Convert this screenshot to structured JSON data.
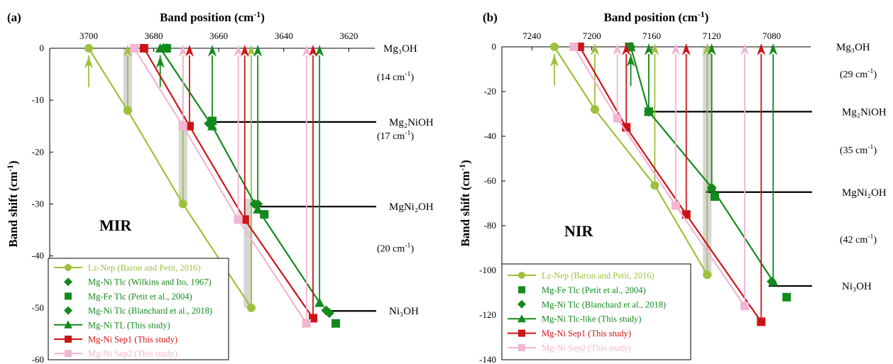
{
  "figure": {
    "colors": {
      "lz_nep": "#9dc13c",
      "green": "#138a1d",
      "red": "#cc1417",
      "pink": "#f2b5d2",
      "gray": "#cfcfcf",
      "black": "#000000"
    }
  },
  "chart_data": [
    {
      "type": "line",
      "panel_label": "(a)",
      "title_text": "Band position (cm",
      "title_sup": "-1",
      "title_end": ")",
      "ylabel_text": "Band shift (cm",
      "ylabel_sup": "-1",
      "ylabel_end": ")",
      "x_reversed": true,
      "xlim": [
        3712,
        3612
      ],
      "ylim": [
        -60,
        0
      ],
      "x_ticks": [
        3700,
        3680,
        3660,
        3640,
        3620
      ],
      "y_ticks": [
        0,
        -10,
        -20,
        -30,
        -40,
        -50,
        -60
      ],
      "plot_label": "MIR",
      "species": [
        {
          "label": "Mg₃OH",
          "y": 0,
          "line": false
        },
        {
          "label": "Mg₂NiOH",
          "y": -14.2,
          "line": true,
          "x_from": 3661
        },
        {
          "label": "MgNi₂OH",
          "y": -30.5,
          "line": true,
          "x_from": 3648
        },
        {
          "label": "Ni₃OH",
          "y": -50.6,
          "line": true,
          "x_from": 3628
        }
      ],
      "gaps": [
        {
          "text": "(14 cm",
          "sup": "-1",
          "end": ")",
          "y": -5.5
        },
        {
          "text": "(17 cm",
          "sup": "-1",
          "end": ")",
          "y": -16.8
        },
        {
          "text": "(20 cm",
          "sup": "-1",
          "end": ")",
          "y": -38.5
        }
      ],
      "bands": [
        {
          "x": 3688,
          "y_top": 0,
          "y_bottom": -12
        },
        {
          "x": 3671,
          "y_top": -14,
          "y_bottom": -30
        },
        {
          "x": 3651,
          "y_top": -29,
          "y_bottom": -50
        }
      ],
      "series": [
        {
          "name": "Lz-Nep (Baron and Petit, 2016)",
          "color_key": "lz_nep",
          "marker": "circle",
          "x": [
            3700,
            3688,
            3671,
            3650
          ],
          "y": [
            0,
            -12,
            -30,
            -50
          ],
          "connect": true,
          "arrows": true,
          "tail": true
        },
        {
          "name": "Mg-Ni Tlc (Wilkins and Ito, 1967)",
          "color_key": "green",
          "marker": "diamond",
          "x": [
            3677,
            3663,
            3649,
            3627
          ],
          "y": [
            0,
            -14.5,
            -30,
            -50.5
          ],
          "connect": false,
          "arrows": false
        },
        {
          "name": "Mg-Fe Tlc (Petit et al., 2004)",
          "color_key": "green",
          "marker": "square",
          "x": [
            3676,
            3662,
            3646,
            3624
          ],
          "y": [
            0,
            -14,
            -32,
            -53
          ],
          "connect": false,
          "arrows": false
        },
        {
          "name": "Mg-Ni Tlc (Blanchard et al., 2018)",
          "color_key": "green",
          "marker": "diamond",
          "x": [
            3676,
            3663,
            3648,
            3626
          ],
          "y": [
            0,
            -14.5,
            -30,
            -51
          ],
          "connect": false,
          "arrows": false
        },
        {
          "name": "Mg-Ni TL (This study)",
          "color_key": "green",
          "marker": "triangle",
          "x": [
            3678,
            3662,
            3648,
            3629
          ],
          "y": [
            0,
            -15,
            -31,
            -49
          ],
          "connect": true,
          "arrows": true,
          "tail": true
        },
        {
          "name": "Mg-Ni Sep1 (This study)",
          "color_key": "red",
          "marker": "square",
          "x": [
            3683,
            3669,
            3652,
            3631
          ],
          "y": [
            0,
            -15,
            -33,
            -52
          ],
          "connect": true,
          "arrows": true,
          "tail": false
        },
        {
          "name": "Mg-Ni Sep2 (This study)",
          "color_key": "pink",
          "marker": "square",
          "x": [
            3686,
            3671,
            3654,
            3633
          ],
          "y": [
            0,
            -15,
            -33,
            -53
          ],
          "connect": true,
          "arrows": true,
          "tail": false
        }
      ]
    },
    {
      "type": "line",
      "panel_label": "(b)",
      "title_text": "Band position (cm",
      "title_sup": "-1",
      "title_end": ")",
      "ylabel_text": "Band shift (cm",
      "ylabel_sup": "-1",
      "ylabel_end": ")",
      "x_reversed": true,
      "xlim": [
        7260,
        7054
      ],
      "ylim": [
        -140,
        0
      ],
      "x_ticks": [
        7240,
        7200,
        7160,
        7120,
        7080
      ],
      "y_ticks": [
        0,
        -20,
        -40,
        -60,
        -80,
        -100,
        -120,
        -140
      ],
      "plot_label": "NIR",
      "species": [
        {
          "label": "Mg₃OH",
          "y": 0,
          "line": false
        },
        {
          "label": "Mg₂NiOH",
          "y": -29,
          "line": true,
          "x_from": 7164
        },
        {
          "label": "MgNi₂OH",
          "y": -65,
          "line": true,
          "x_from": 7124
        },
        {
          "label": "Ni₃OH",
          "y": -107,
          "line": true,
          "x_from": 7082
        }
      ],
      "gaps": [
        {
          "text": "(29 cm",
          "sup": "-1",
          "end": ")",
          "y": -12
        },
        {
          "text": "(35 cm",
          "sup": "-1",
          "end": ")",
          "y": -46
        },
        {
          "text": "(42 cm",
          "sup": "-1",
          "end": ")",
          "y": -86
        }
      ],
      "bands": [
        {
          "x": 7123,
          "y_top": 0,
          "y_bottom": -103
        }
      ],
      "series": [
        {
          "name": "Lz-Nep (Baron and Petit, 2016)",
          "color_key": "lz_nep",
          "marker": "circle",
          "x": [
            7225,
            7198,
            7158,
            7123
          ],
          "y": [
            0,
            -28,
            -62,
            -102
          ],
          "connect": true,
          "arrows": true,
          "tail": true
        },
        {
          "name": "Mg-Fe Tlc (Petit et al., 2004)",
          "color_key": "green",
          "marker": "square",
          "x": [
            7175,
            7162,
            7118,
            7070
          ],
          "y": [
            0,
            -29,
            -67,
            -112
          ],
          "connect": false,
          "arrows": false
        },
        {
          "name": "Mg-Ni Tlc (Blanchard et al., 2018)",
          "color_key": "green",
          "marker": "diamond",
          "x": [
            7174,
            7162,
            7120,
            7080
          ],
          "y": [
            0,
            -29,
            -63,
            -105
          ],
          "connect": false,
          "arrows": false
        },
        {
          "name": "Mg-Ni Tlc-like (This study)",
          "color_key": "green",
          "marker": "triangle",
          "x": [
            7174,
            7162,
            7120,
            7079
          ],
          "y": [
            0,
            -29,
            -63,
            -105
          ],
          "connect": true,
          "arrows": true,
          "tail": true
        },
        {
          "name": "Mg-Ni Sep1 (This study)",
          "color_key": "red",
          "marker": "square",
          "x": [
            7208,
            7177,
            7137,
            7087
          ],
          "y": [
            0,
            -36,
            -75,
            -123
          ],
          "connect": true,
          "arrows": true,
          "tail": false
        },
        {
          "name": "Mg-Ni Sep2 (This study)",
          "color_key": "pink",
          "marker": "square",
          "x": [
            7212,
            7183,
            7144,
            7098
          ],
          "y": [
            0,
            -32,
            -71,
            -116
          ],
          "connect": true,
          "arrows": true,
          "tail": false
        }
      ]
    }
  ]
}
